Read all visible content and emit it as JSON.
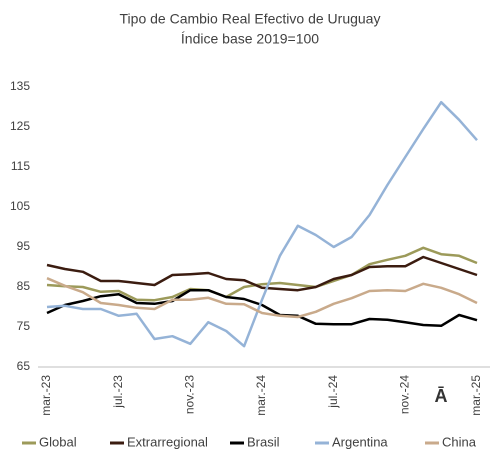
{
  "chart_data": {
    "type": "line",
    "title": "Tipo de Cambio Real Efectivo de Uruguay",
    "subtitle": "Índice base 2019=100",
    "annotation": "Ā",
    "categories": [
      "mar.-23",
      null,
      null,
      null,
      "jul.-23",
      null,
      null,
      null,
      "nov.-23",
      null,
      null,
      null,
      "mar.-24",
      null,
      null,
      null,
      "jul.-24",
      null,
      null,
      null,
      "nov.-24",
      null,
      null,
      null,
      "mar.-25"
    ],
    "series": [
      {
        "name": "Global",
        "color": "#9c9a5a",
        "values": [
          85.5,
          85.2,
          85,
          83.8,
          84,
          81.8,
          81.7,
          82.5,
          84.5,
          84.2,
          82.5,
          85,
          85.7,
          86,
          85.5,
          85,
          86.5,
          88,
          90.7,
          91.8,
          92.8,
          94.8,
          93.2,
          92.8,
          91
        ]
      },
      {
        "name": "Extrarregional",
        "color": "#3b1c10",
        "values": [
          90.5,
          89.5,
          88.8,
          86.5,
          86.5,
          86,
          85.5,
          88,
          88.2,
          88.5,
          87,
          86.7,
          84.8,
          84.5,
          84.2,
          85,
          87,
          88,
          90,
          90.2,
          90.2,
          92.5,
          91,
          89.5,
          88
        ]
      },
      {
        "name": "Brasil",
        "color": "#000000",
        "values": [
          78.5,
          80.5,
          81.5,
          82.7,
          83.2,
          81,
          80.8,
          81.5,
          84.2,
          84.2,
          82.5,
          82,
          80.5,
          78,
          77.8,
          75.8,
          75.7,
          75.7,
          77,
          76.8,
          76.2,
          75.5,
          75.3,
          78,
          76.7
        ]
      },
      {
        "name": "Argentina",
        "color": "#95b3d7",
        "values": [
          80,
          80.3,
          79.5,
          79.5,
          77.8,
          78.3,
          72,
          72.7,
          70.8,
          76.2,
          74,
          70.2,
          81.8,
          92.8,
          100.3,
          98,
          95,
          97.5,
          103,
          110.5,
          117.5,
          124.5,
          131.2,
          126.8,
          121.7
        ]
      },
      {
        "name": "China",
        "color": "#c9aa8b",
        "values": [
          87.2,
          85.3,
          83.7,
          81,
          80.5,
          79.8,
          79.5,
          81.8,
          81.8,
          82.3,
          80.8,
          80.7,
          78.5,
          77.8,
          77.5,
          78.8,
          80.8,
          82.2,
          84,
          84.2,
          84,
          85.8,
          84.8,
          83.2,
          81
        ]
      }
    ],
    "ylim": [
      65,
      135
    ],
    "yticks": [
      65,
      75,
      85,
      95,
      105,
      115,
      125,
      135
    ],
    "grid": false
  }
}
